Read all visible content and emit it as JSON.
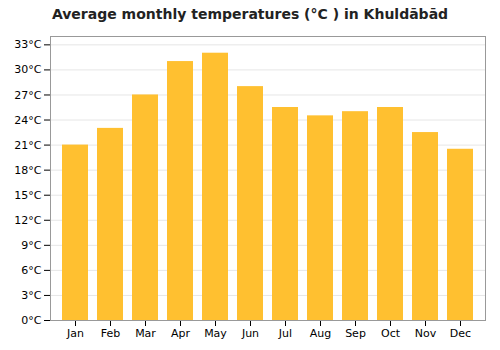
{
  "chart_data": {
    "type": "bar",
    "title": "Average monthly temperatures (°C ) in Khuldābād",
    "categories": [
      "Jan",
      "Feb",
      "Mar",
      "Apr",
      "May",
      "Jun",
      "Jul",
      "Aug",
      "Sep",
      "Oct",
      "Nov",
      "Dec"
    ],
    "values": [
      21.0,
      23.0,
      27.0,
      31.0,
      32.0,
      28.0,
      25.5,
      24.5,
      25.0,
      25.5,
      22.5,
      20.5
    ],
    "color": "#FFC030",
    "ylim": [
      0,
      34
    ],
    "yticks": [
      {
        "value": 0,
        "label": "0°C"
      },
      {
        "value": 3,
        "label": "3°C"
      },
      {
        "value": 6,
        "label": "6°C"
      },
      {
        "value": 9,
        "label": "9°C"
      },
      {
        "value": 12,
        "label": "12°C"
      },
      {
        "value": 15,
        "label": "15°C"
      },
      {
        "value": 18,
        "label": "18°C"
      },
      {
        "value": 21,
        "label": "21°C"
      },
      {
        "value": 24,
        "label": "24°C"
      },
      {
        "value": 27,
        "label": "27°C"
      },
      {
        "value": 30,
        "label": "30°C"
      },
      {
        "value": 33,
        "label": "33°C"
      }
    ],
    "grid": true
  }
}
